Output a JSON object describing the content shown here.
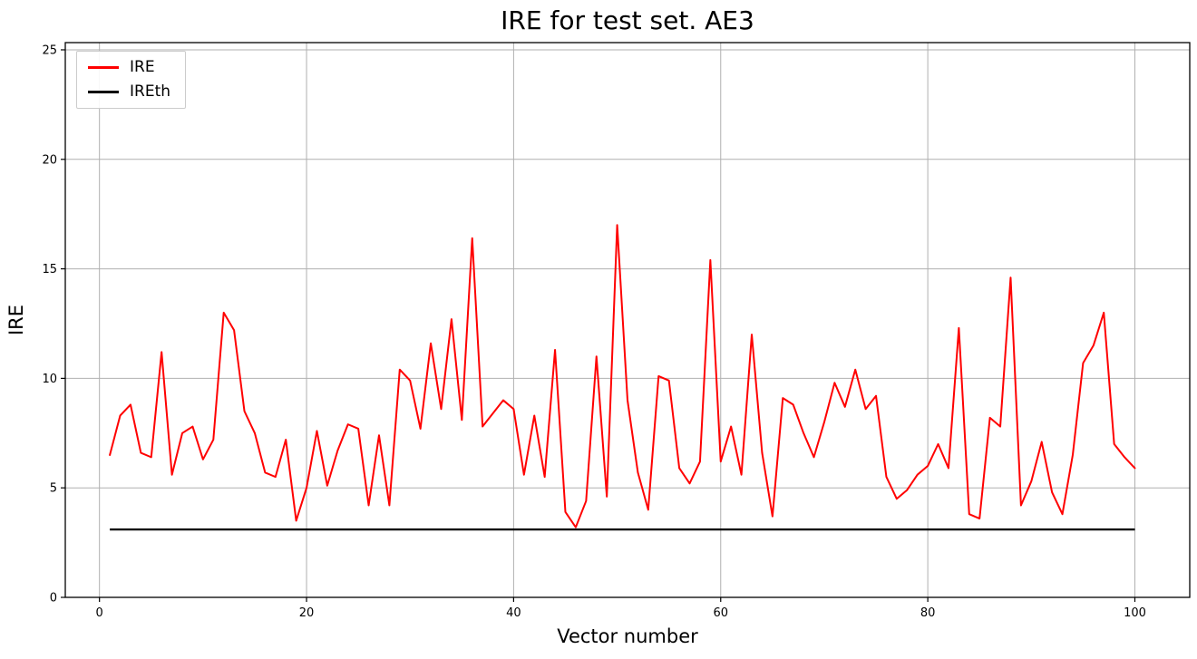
{
  "chart_data": {
    "type": "line",
    "title": "IRE for test set. AE3",
    "xlabel": "Vector number",
    "ylabel": "IRE",
    "xlim": [
      -3.3,
      105.3
    ],
    "ylim": [
      0,
      25.33
    ],
    "x_ticks": [
      0,
      20,
      40,
      60,
      80,
      100
    ],
    "y_ticks": [
      0,
      5,
      10,
      15,
      20,
      25
    ],
    "grid": true,
    "grid_color": "#b0b0b0",
    "frame_color": "#000000",
    "legend_position": "upper left",
    "x_start": 1,
    "series": [
      {
        "name": "IRE",
        "color": "#ff0000",
        "values": [
          6.5,
          8.3,
          8.8,
          6.6,
          6.4,
          11.2,
          5.6,
          7.5,
          7.8,
          6.3,
          7.2,
          13.0,
          12.2,
          8.5,
          7.5,
          5.7,
          5.5,
          7.2,
          3.5,
          5.0,
          7.6,
          5.1,
          6.7,
          7.9,
          7.7,
          4.2,
          7.4,
          4.2,
          10.4,
          9.9,
          7.7,
          11.6,
          8.6,
          12.7,
          8.1,
          16.4,
          7.8,
          8.4,
          9.0,
          8.6,
          5.6,
          8.3,
          5.5,
          11.3,
          3.9,
          3.2,
          4.4,
          11.0,
          4.6,
          17.0,
          9.0,
          5.7,
          4.0,
          10.1,
          9.9,
          5.9,
          5.2,
          6.2,
          15.4,
          6.2,
          7.8,
          5.6,
          12.0,
          6.6,
          3.7,
          9.1,
          8.8,
          7.5,
          6.4,
          8.0,
          9.8,
          8.7,
          10.4,
          8.6,
          9.2,
          5.5,
          4.5,
          4.9,
          5.6,
          6.0,
          7.0,
          5.9,
          12.3,
          3.8,
          3.6,
          8.2,
          7.8,
          14.6,
          4.2,
          5.3,
          7.1,
          4.8,
          3.8,
          6.5,
          10.7,
          11.5,
          13.0,
          7.0,
          6.4,
          5.9
        ]
      },
      {
        "name": "IREth",
        "color": "#000000",
        "constant": 3.1,
        "x_range": [
          1,
          100
        ]
      }
    ]
  }
}
